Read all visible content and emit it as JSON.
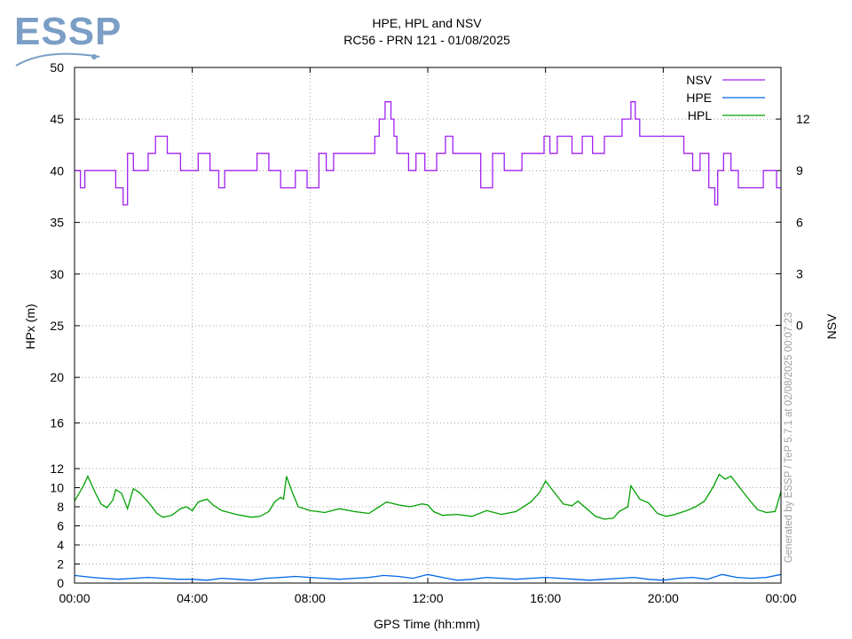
{
  "logo": {
    "text": "ESSP",
    "color": "#7b9ec6"
  },
  "chart_data": {
    "type": "line",
    "title": "HPE, HPL and NSV",
    "subtitle": "RC56 - PRN 121 - 01/08/2025",
    "xlabel": "GPS Time (hh:mm)",
    "ylabel": "HPx (m)",
    "y2label": "NSV",
    "footer": "Generated by ESSP / TeP 5.7.1 at 02/08/2025 00:07:23",
    "grid": true,
    "legend_position": "top-right",
    "x_range_hours": [
      0,
      24
    ],
    "x_ticks": [
      0,
      4,
      8,
      12,
      16,
      20,
      24
    ],
    "x_tick_labels": [
      "00:00",
      "04:00",
      "08:00",
      "12:00",
      "16:00",
      "20:00",
      "00:00"
    ],
    "y_ticks": [
      0,
      2,
      4,
      6,
      8,
      10,
      12,
      16,
      20,
      25,
      30,
      35,
      40,
      45,
      50
    ],
    "y_tick_labels": [
      "0",
      "2",
      "4",
      "6",
      "8",
      "10",
      "12",
      "16",
      "20",
      "25",
      "30",
      "35",
      "40",
      "45",
      "50"
    ],
    "y_scale_breakpoints": [
      [
        0,
        0
      ],
      [
        12,
        0.222
      ],
      [
        20,
        0.399
      ],
      [
        50,
        1
      ]
    ],
    "y2_ticks": [
      0,
      3,
      6,
      9,
      12
    ],
    "y2_tick_labels": [
      "0",
      "3",
      "6",
      "9",
      "12"
    ],
    "y2_range": [
      -15,
      15
    ],
    "series": [
      {
        "name": "NSV",
        "color": "#a020f0",
        "axis": "y2",
        "step": true,
        "x": [
          0,
          0.2,
          0.35,
          0.6,
          1.4,
          1.65,
          1.8,
          2.0,
          2.5,
          2.75,
          3.15,
          3.6,
          4.0,
          4.2,
          4.6,
          4.9,
          5.1,
          6.0,
          6.2,
          6.6,
          6.8,
          7.0,
          7.5,
          7.9,
          8.3,
          8.55,
          8.8,
          9.3,
          9.6,
          9.75,
          10.2,
          10.35,
          10.55,
          10.75,
          10.85,
          10.95,
          11.1,
          11.35,
          11.6,
          11.9,
          12.3,
          12.6,
          12.85,
          13.1,
          13.5,
          13.8,
          14.2,
          14.6,
          15.2,
          15.6,
          15.95,
          16.15,
          16.4,
          16.9,
          17.25,
          17.6,
          18.0,
          18.4,
          18.6,
          18.9,
          19.05,
          19.2,
          19.35,
          19.75,
          20.0,
          20.5,
          20.7,
          21.0,
          21.25,
          21.55,
          21.75,
          21.85,
          22.05,
          22.3,
          22.55,
          23.4,
          23.85,
          24.0
        ],
        "values": [
          9,
          8,
          9,
          9,
          8,
          7,
          10,
          9,
          10,
          11,
          10,
          9,
          9,
          10,
          9,
          8,
          9,
          9,
          10,
          9,
          9,
          8,
          9,
          8,
          10,
          9,
          10,
          10,
          10,
          10,
          11,
          12,
          13,
          12,
          11,
          10,
          10,
          9,
          10,
          9,
          10,
          11,
          10,
          10,
          10,
          8,
          10,
          9,
          10,
          10,
          11,
          10,
          11,
          10,
          11,
          10,
          11,
          11,
          12,
          13,
          12,
          11,
          11,
          11,
          11,
          11,
          10,
          9,
          10,
          8,
          7,
          9,
          10,
          9,
          8,
          9,
          8,
          8
        ]
      },
      {
        "name": "HPE",
        "color": "#0066e6",
        "axis": "y",
        "x": [
          0,
          0.3,
          0.6,
          1.0,
          1.5,
          2.0,
          2.5,
          3.0,
          3.5,
          4.0,
          4.5,
          5.0,
          5.5,
          6.0,
          6.5,
          7.0,
          7.5,
          8.0,
          8.5,
          9.0,
          9.5,
          10.0,
          10.5,
          11.0,
          11.5,
          12.0,
          12.5,
          13.0,
          13.5,
          14.0,
          14.5,
          15.0,
          15.5,
          16.0,
          16.5,
          17.0,
          17.5,
          18.0,
          18.5,
          19.0,
          19.5,
          20.0,
          20.5,
          21.0,
          21.5,
          22.0,
          22.5,
          23.0,
          23.5,
          24.0
        ],
        "values": [
          0.8,
          0.7,
          0.6,
          0.5,
          0.4,
          0.5,
          0.6,
          0.5,
          0.4,
          0.4,
          0.3,
          0.5,
          0.4,
          0.3,
          0.5,
          0.6,
          0.7,
          0.6,
          0.5,
          0.4,
          0.5,
          0.6,
          0.8,
          0.7,
          0.5,
          0.9,
          0.6,
          0.3,
          0.4,
          0.6,
          0.5,
          0.4,
          0.5,
          0.6,
          0.5,
          0.4,
          0.3,
          0.4,
          0.5,
          0.6,
          0.4,
          0.3,
          0.5,
          0.6,
          0.4,
          0.9,
          0.6,
          0.5,
          0.6,
          0.9
        ]
      },
      {
        "name": "HPL",
        "color": "#00a000",
        "axis": "y",
        "x": [
          0,
          0.3,
          0.45,
          0.7,
          0.9,
          1.1,
          1.3,
          1.4,
          1.6,
          1.8,
          2.0,
          2.2,
          2.5,
          2.8,
          3.0,
          3.3,
          3.6,
          3.8,
          4.0,
          4.2,
          4.5,
          4.7,
          5.0,
          5.5,
          6.0,
          6.3,
          6.6,
          6.8,
          7.0,
          7.1,
          7.2,
          7.4,
          7.6,
          8.0,
          8.5,
          9.0,
          9.5,
          10.0,
          10.3,
          10.6,
          11.0,
          11.4,
          11.8,
          12.0,
          12.2,
          12.5,
          13.0,
          13.5,
          14.0,
          14.5,
          15.0,
          15.5,
          15.8,
          16.0,
          16.3,
          16.6,
          16.9,
          17.1,
          17.4,
          17.7,
          18.0,
          18.3,
          18.5,
          18.8,
          18.9,
          19.2,
          19.5,
          19.8,
          20.1,
          20.4,
          20.8,
          21.1,
          21.4,
          21.7,
          21.9,
          22.1,
          22.3,
          22.6,
          22.9,
          23.2,
          23.5,
          23.8,
          24.0
        ],
        "values": [
          8.6,
          10.2,
          11.2,
          9.5,
          8.3,
          7.9,
          8.7,
          9.8,
          9.4,
          7.8,
          9.9,
          9.5,
          8.5,
          7.3,
          6.9,
          7.1,
          7.8,
          8.0,
          7.6,
          8.5,
          8.8,
          8.2,
          7.6,
          7.2,
          6.9,
          7.0,
          7.5,
          8.5,
          9.0,
          8.8,
          11.2,
          9.5,
          8.0,
          7.6,
          7.4,
          7.8,
          7.5,
          7.3,
          7.9,
          8.5,
          8.2,
          8.0,
          8.3,
          8.2,
          7.5,
          7.1,
          7.2,
          7.0,
          7.6,
          7.2,
          7.5,
          8.5,
          9.5,
          10.7,
          9.5,
          8.3,
          8.1,
          8.6,
          7.8,
          7.0,
          6.7,
          6.8,
          7.5,
          8.0,
          10.2,
          8.8,
          8.4,
          7.3,
          7.0,
          7.2,
          7.6,
          8.0,
          8.6,
          10.1,
          11.4,
          10.9,
          11.2,
          10.0,
          8.8,
          7.7,
          7.4,
          7.5,
          9.6
        ]
      }
    ]
  }
}
